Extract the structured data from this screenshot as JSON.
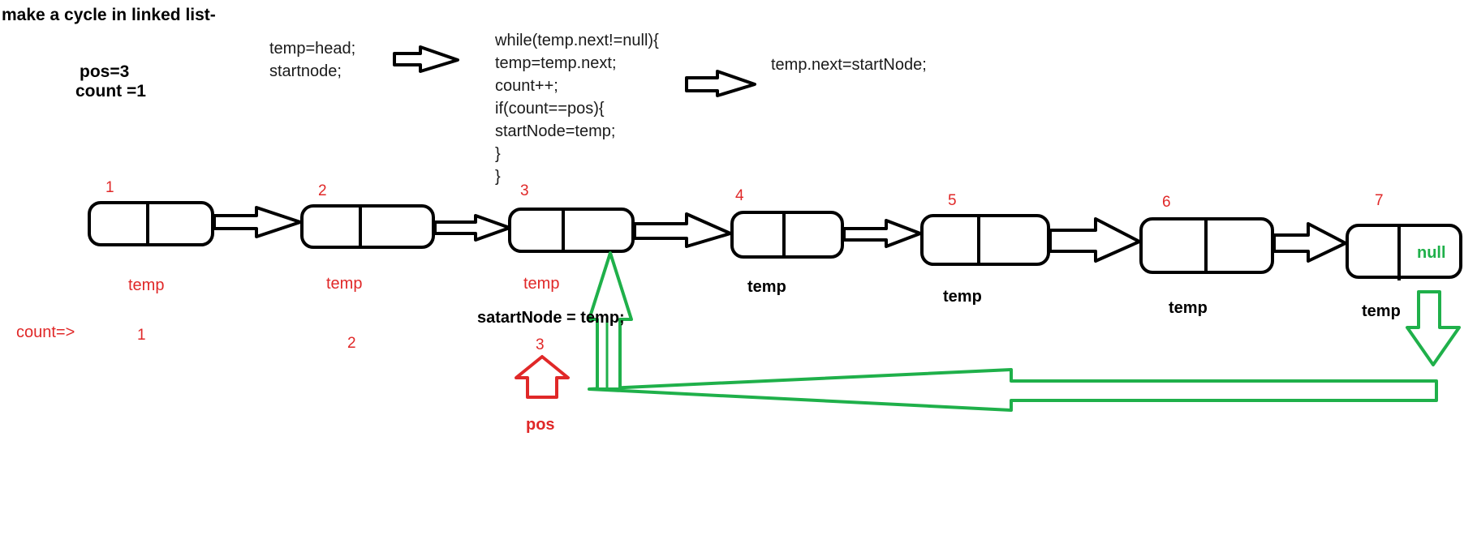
{
  "title": "make a cycle in linked list-",
  "vars": {
    "pos": "pos=3",
    "count": "count =1"
  },
  "code_init": [
    "temp=head;",
    "startnode;"
  ],
  "code_loop": [
    "while(temp.next!=null){",
    "temp=temp.next;",
    "count++;",
    "if(count==pos){",
    "startNode=temp;",
    "}",
    "}"
  ],
  "code_final": "temp.next=startNode;",
  "nodes": [
    {
      "index": "1",
      "label": "temp",
      "count": "1",
      "value": ""
    },
    {
      "index": "2",
      "label": "temp",
      "count": "2",
      "value": ""
    },
    {
      "index": "3",
      "label": "temp",
      "count": "3",
      "value": ""
    },
    {
      "index": "4",
      "label": "temp",
      "count": "",
      "value": ""
    },
    {
      "index": "5",
      "label": "temp",
      "count": "",
      "value": ""
    },
    {
      "index": "6",
      "label": "temp",
      "count": "",
      "value": ""
    },
    {
      "index": "7",
      "label": "temp",
      "count": "",
      "value": "null"
    }
  ],
  "count_prefix": "count=>",
  "start_node_note": "satartNode = temp;",
  "pos_label": "pos",
  "colors": {
    "black": "#000000",
    "red": "#e02828",
    "green": "#1fb04a"
  }
}
